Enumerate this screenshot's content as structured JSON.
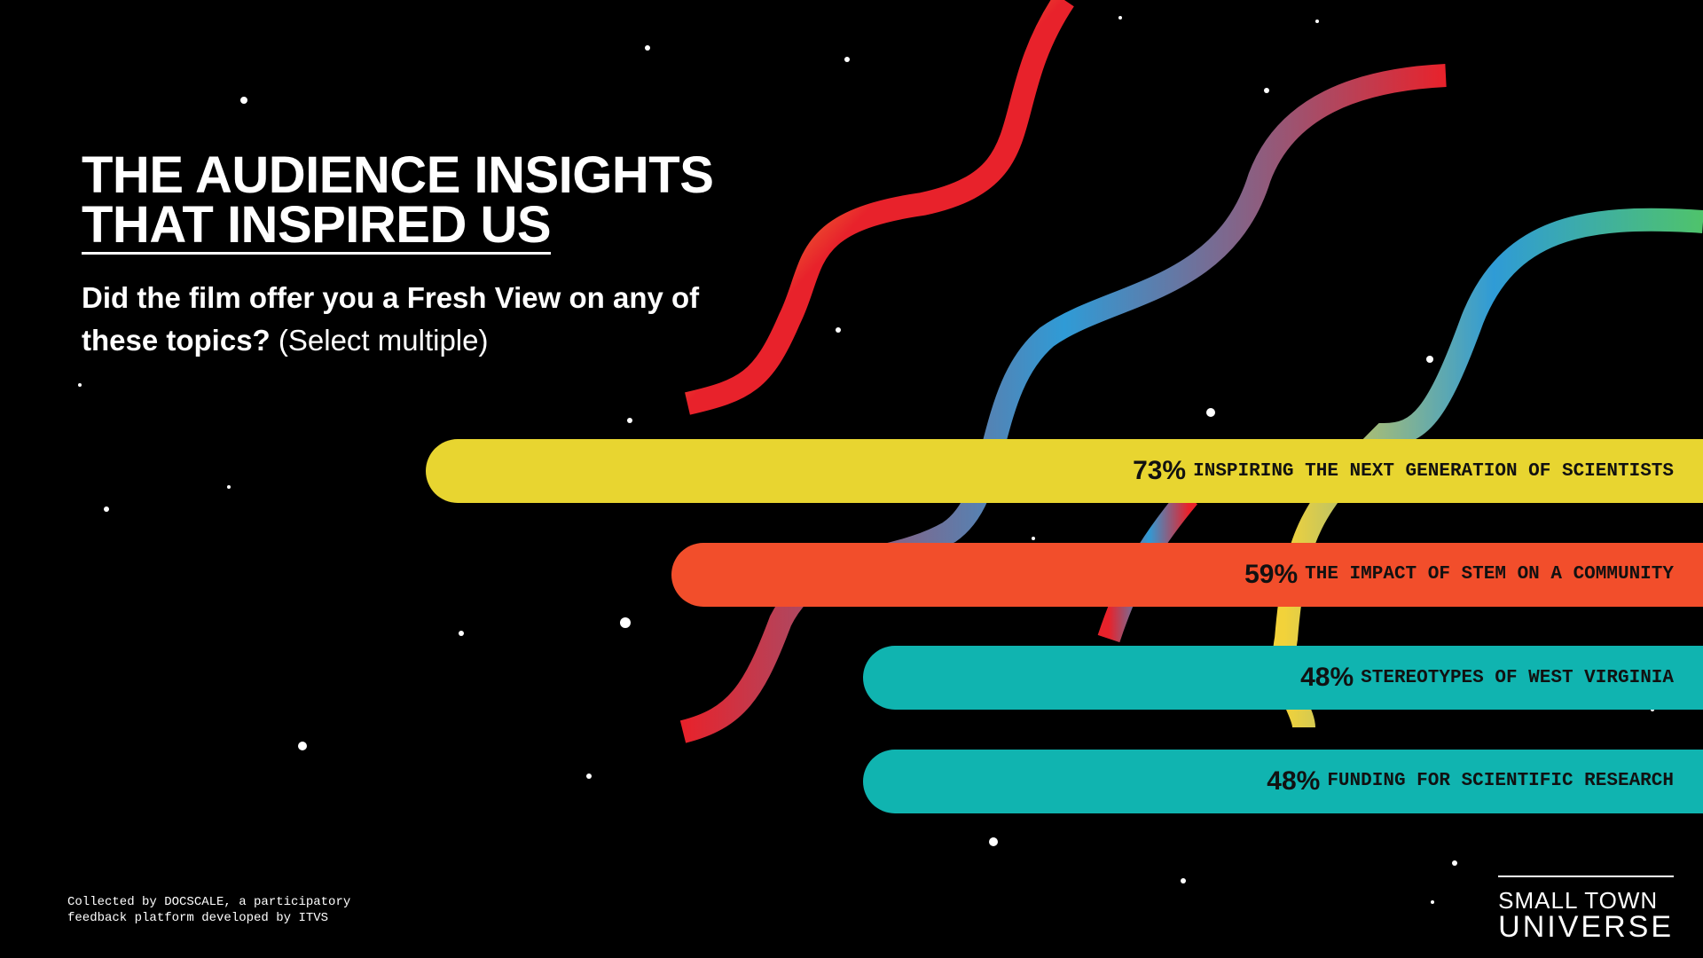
{
  "chart_data": {
    "type": "bar",
    "orientation": "horizontal",
    "title_lines": [
      "THE AUDIENCE INSIGHTS",
      "THAT INSPIRED US"
    ],
    "subtitle": "Did the film offer you a Fresh View on any of these topics?",
    "subtitle_note": "(Select multiple)",
    "categories": [
      "INSPIRING THE NEXT GENERATION OF SCIENTISTS",
      "THE IMPACT OF STEM ON A COMMUNITY",
      "STEREOTYPES OF WEST VIRGINIA",
      "FUNDING FOR SCIENTIFIC RESEARCH"
    ],
    "values": [
      73,
      59,
      48,
      48
    ],
    "value_labels": [
      "73%",
      "59%",
      "48%",
      "48%"
    ],
    "colors": [
      "#e8d530",
      "#f24e2b",
      "#10b4b0",
      "#10b4b0"
    ],
    "footnote": "Collected by DOCSCALE, a participatory feedback platform developed by ITVS",
    "logo_lines": [
      "SMALL TOWN",
      "UNIVERSE"
    ]
  }
}
